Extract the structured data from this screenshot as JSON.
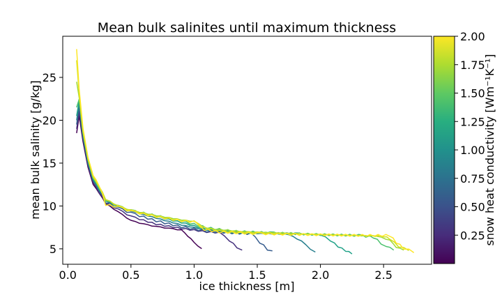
{
  "chart_data": {
    "type": "line",
    "title": "Mean bulk salinites until maximum thickness",
    "xlabel": "ice thickness [m]",
    "ylabel": "mean bulk salinity [g/kg]",
    "xlim": [
      -0.04,
      2.88
    ],
    "ylim": [
      3.2,
      29.8
    ],
    "xticks": [
      0.0,
      0.5,
      1.0,
      1.5,
      2.0,
      2.5
    ],
    "xtick_labels": [
      "0.0",
      "0.5",
      "1.0",
      "1.5",
      "2.0",
      "2.5"
    ],
    "yticks": [
      5,
      10,
      15,
      20,
      25
    ],
    "ytick_labels": [
      "5",
      "10",
      "15",
      "20",
      "25"
    ],
    "grid": false,
    "colorbar": {
      "label": "snow heat conductivity [Wm⁻¹K⁻¹]",
      "colormap": "viridis",
      "range": [
        0.0,
        2.0
      ],
      "ticks": [
        0.25,
        0.5,
        0.75,
        1.0,
        1.25,
        1.5,
        1.75,
        2.0
      ],
      "tick_labels": [
        "0.25",
        "0.50",
        "0.75",
        "1.00",
        "1.25",
        "1.50",
        "1.75",
        "2.00"
      ]
    },
    "series": [
      {
        "k": 0.05,
        "color": "#440154",
        "x": [
          0.07,
          0.09,
          0.12,
          0.16,
          0.2,
          0.25,
          0.3,
          0.4,
          0.5,
          0.6,
          0.7,
          0.8,
          0.9,
          0.95,
          1.0,
          1.03,
          1.06
        ],
        "y": [
          18.5,
          20.5,
          17.5,
          14.5,
          12.5,
          11.5,
          10.3,
          9.3,
          8.3,
          7.9,
          7.6,
          7.4,
          7.2,
          6.5,
          5.8,
          5.3,
          5.0
        ]
      },
      {
        "k": 0.25,
        "color": "#46327e",
        "x": [
          0.07,
          0.09,
          0.12,
          0.16,
          0.2,
          0.25,
          0.3,
          0.4,
          0.5,
          0.7,
          0.9,
          1.1,
          1.2,
          1.28,
          1.34,
          1.38
        ],
        "y": [
          19.0,
          21.0,
          17.8,
          14.7,
          12.7,
          11.6,
          10.4,
          9.6,
          8.8,
          7.9,
          7.4,
          7.0,
          6.9,
          6.0,
          5.2,
          4.8
        ]
      },
      {
        "k": 0.5,
        "color": "#365c8d",
        "x": [
          0.07,
          0.09,
          0.12,
          0.16,
          0.2,
          0.25,
          0.3,
          0.4,
          0.5,
          0.7,
          0.9,
          1.1,
          1.3,
          1.45,
          1.52,
          1.58,
          1.62
        ],
        "y": [
          19.5,
          21.5,
          18.0,
          14.9,
          12.9,
          11.8,
          10.5,
          9.8,
          9.2,
          8.3,
          7.6,
          7.1,
          6.9,
          6.8,
          5.8,
          5.0,
          4.7
        ]
      },
      {
        "k": 0.75,
        "color": "#277f8e",
        "x": [
          0.07,
          0.09,
          0.12,
          0.16,
          0.2,
          0.25,
          0.3,
          0.4,
          0.5,
          0.7,
          0.9,
          1.1,
          1.3,
          1.5,
          1.75,
          1.85,
          1.92,
          1.96
        ],
        "y": [
          20.0,
          22.0,
          18.2,
          15.0,
          13.0,
          11.9,
          10.6,
          9.9,
          9.4,
          8.6,
          7.8,
          7.2,
          6.9,
          6.8,
          6.7,
          5.9,
          5.0,
          4.6
        ]
      },
      {
        "k": 1.0,
        "color": "#1fa187",
        "x": [
          0.07,
          0.09,
          0.12,
          0.16,
          0.2,
          0.25,
          0.3,
          0.4,
          0.5,
          0.7,
          0.9,
          1.1,
          1.3,
          1.5,
          1.8,
          2.0,
          2.08,
          2.14,
          2.2,
          2.25
        ],
        "y": [
          20.5,
          22.2,
          18.4,
          15.2,
          13.1,
          12.0,
          10.7,
          10.0,
          9.5,
          8.8,
          8.1,
          7.3,
          7.0,
          6.9,
          6.8,
          6.7,
          6.0,
          5.3,
          4.8,
          4.5
        ]
      },
      {
        "k": 1.25,
        "color": "#4ac16d",
        "x": [
          0.07,
          0.09,
          0.12,
          0.16,
          0.2,
          0.25,
          0.3,
          0.4,
          0.5,
          0.7,
          0.9,
          1.1,
          1.3,
          1.6,
          2.0,
          2.3,
          2.42,
          2.48,
          2.52,
          2.58
        ],
        "y": [
          21.5,
          22.4,
          18.5,
          15.3,
          13.2,
          12.1,
          10.7,
          10.0,
          9.5,
          8.9,
          8.3,
          7.5,
          7.1,
          6.9,
          6.7,
          6.6,
          6.4,
          5.7,
          5.2,
          5.0
        ]
      },
      {
        "k": 1.5,
        "color": "#a0da39",
        "x": [
          0.07,
          0.09,
          0.12,
          0.16,
          0.2,
          0.25,
          0.3,
          0.4,
          0.5,
          0.7,
          0.9,
          1.0,
          1.1,
          1.4,
          1.8,
          2.2,
          2.45,
          2.55,
          2.6,
          2.66
        ],
        "y": [
          24.5,
          22.6,
          18.6,
          15.4,
          13.3,
          12.2,
          10.8,
          10.0,
          9.5,
          8.9,
          8.4,
          8.2,
          7.4,
          7.0,
          6.8,
          6.6,
          6.5,
          6.0,
          5.2,
          4.9
        ]
      },
      {
        "k": 1.75,
        "color": "#d0e11c",
        "x": [
          0.07,
          0.09,
          0.12,
          0.16,
          0.2,
          0.25,
          0.3,
          0.4,
          0.5,
          0.7,
          0.9,
          1.0,
          1.05,
          1.2,
          1.5,
          1.9,
          2.3,
          2.5,
          2.55,
          2.62,
          2.7
        ],
        "y": [
          27.0,
          23.0,
          18.8,
          15.5,
          13.4,
          12.3,
          10.8,
          10.0,
          9.5,
          8.8,
          8.3,
          8.2,
          7.6,
          7.1,
          6.9,
          6.7,
          6.6,
          6.5,
          6.2,
          5.3,
          4.9
        ]
      },
      {
        "k": 2.0,
        "color": "#fde725",
        "x": [
          0.07,
          0.09,
          0.12,
          0.16,
          0.2,
          0.25,
          0.3,
          0.4,
          0.5,
          0.7,
          0.9,
          1.0,
          1.08,
          1.2,
          1.5,
          1.9,
          2.3,
          2.55,
          2.6,
          2.66,
          2.74
        ],
        "y": [
          28.3,
          23.5,
          19.0,
          15.6,
          13.5,
          12.4,
          10.2,
          9.9,
          9.4,
          8.8,
          8.3,
          8.2,
          7.3,
          7.0,
          6.8,
          6.7,
          6.6,
          6.6,
          5.8,
          5.1,
          4.7
        ]
      }
    ]
  }
}
